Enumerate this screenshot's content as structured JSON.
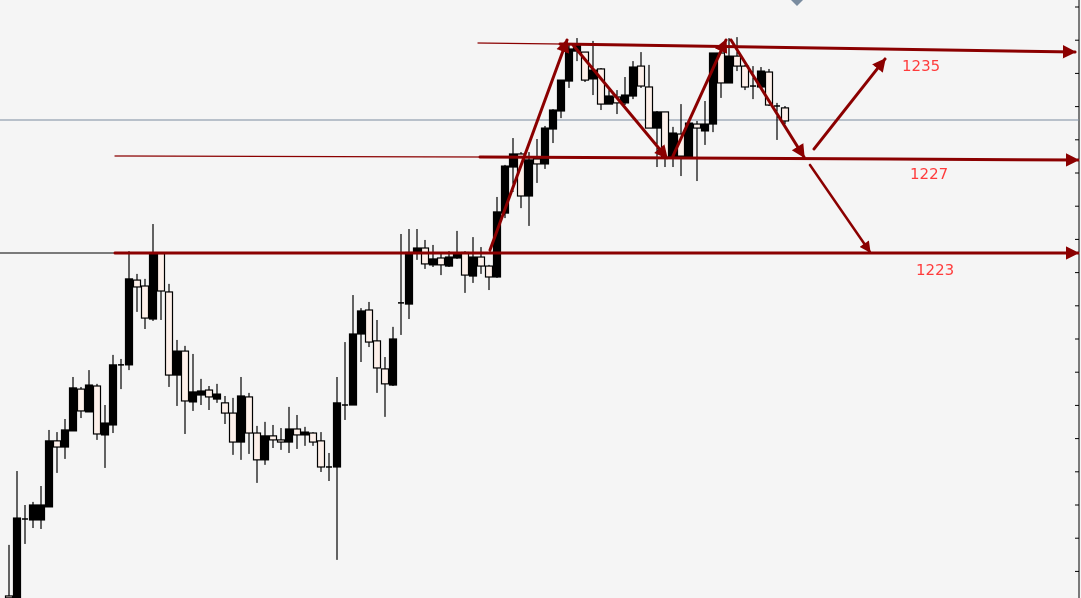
{
  "chart_data": {
    "type": "candlestick",
    "title": "",
    "xlabel": "",
    "ylabel": "",
    "grid": false,
    "colors": {
      "bull_body": "#000000",
      "bear_body": "#fdf0ea",
      "annotation": "#8b0000",
      "label": "#ff3b3b",
      "current_price_line": "#7a8ca0",
      "background": "#f5f5f5"
    },
    "current_price": 1228.6,
    "candles_ohlc": [
      [
        1208.56,
        1210.71,
        1208.48,
        1208.48
      ],
      [
        1208.48,
        1213.82,
        1208.48,
        1211.84
      ],
      [
        1211.8,
        1212.39,
        1210.75,
        1211.8
      ],
      [
        1211.76,
        1212.52,
        1211.42,
        1212.39
      ],
      [
        1211.76,
        1213.19,
        1211.38,
        1212.39
      ],
      [
        1212.31,
        1215.55,
        1212.31,
        1215.09
      ],
      [
        1215.09,
        1215.46,
        1213.74,
        1214.83
      ],
      [
        1214.83,
        1216.01,
        1214.33,
        1215.55
      ],
      [
        1215.51,
        1217.78,
        1215.51,
        1217.32
      ],
      [
        1217.27,
        1217.36,
        1216.05,
        1216.35
      ],
      [
        1216.31,
        1218.07,
        1216.31,
        1217.44
      ],
      [
        1217.4,
        1217.49,
        1215.13,
        1215.38
      ],
      [
        1215.34,
        1216.6,
        1213.95,
        1215.84
      ],
      [
        1215.76,
        1218.71,
        1215.42,
        1218.29
      ],
      [
        1218.29,
        1218.54,
        1217.27,
        1218.29
      ],
      [
        1218.29,
        1223.08,
        1218.07,
        1221.91
      ],
      [
        1221.86,
        1222.12,
        1220.52,
        1221.57
      ],
      [
        1221.61,
        1221.91,
        1219.8,
        1220.26
      ],
      [
        1220.22,
        1224.22,
        1220.14,
        1222.96
      ],
      [
        1222.96,
        1223.04,
        1220.18,
        1221.4
      ],
      [
        1221.36,
        1221.7,
        1217.36,
        1217.86
      ],
      [
        1217.86,
        1219.34,
        1216.56,
        1218.87
      ],
      [
        1218.87,
        1219.09,
        1215.38,
        1216.77
      ],
      [
        1216.73,
        1218.75,
        1216.35,
        1217.15
      ],
      [
        1217.02,
        1217.7,
        1216.6,
        1217.19
      ],
      [
        1217.23,
        1217.4,
        1216.39,
        1216.94
      ],
      [
        1216.85,
        1217.49,
        1216.69,
        1217.06
      ],
      [
        1216.69,
        1216.98,
        1215.8,
        1216.26
      ],
      [
        1216.26,
        1216.9,
        1214.5,
        1215.04
      ],
      [
        1215.04,
        1217.78,
        1214.29,
        1216.98
      ],
      [
        1216.94,
        1217.11,
        1214.54,
        1215.42
      ],
      [
        1215.42,
        1215.72,
        1213.32,
        1214.29
      ],
      [
        1214.29,
        1215.89,
        1214.08,
        1215.3
      ],
      [
        1215.3,
        1215.76,
        1214.79,
        1215.13
      ],
      [
        1215.13,
        1215.63,
        1214.71,
        1215.04
      ],
      [
        1215.04,
        1216.52,
        1214.58,
        1215.59
      ],
      [
        1215.59,
        1216.18,
        1214.75,
        1215.34
      ],
      [
        1215.34,
        1215.68,
        1214.88,
        1215.46
      ],
      [
        1215.42,
        1215.46,
        1214.88,
        1215.04
      ],
      [
        1215.09,
        1215.46,
        1213.78,
        1213.99
      ],
      [
        1213.99,
        1214.58,
        1213.4,
        1213.99
      ],
      [
        1213.99,
        1217.78,
        1210.08,
        1216.69
      ],
      [
        1216.6,
        1219.25,
        1215.97,
        1216.6
      ],
      [
        1216.6,
        1221.23,
        1216.6,
        1219.59
      ],
      [
        1219.59,
        1220.68,
        1218.41,
        1220.56
      ],
      [
        1220.6,
        1220.94,
        1219.04,
        1219.25
      ],
      [
        1219.3,
        1220.18,
        1217.11,
        1218.16
      ],
      [
        1218.12,
        1218.62,
        1216.1,
        1217.49
      ],
      [
        1217.44,
        1219.89,
        1217.4,
        1219.38
      ],
      [
        1220.9,
        1223.8,
        1219.55,
        1220.9
      ],
      [
        1220.85,
        1224.01,
        1220.22,
        1223.04
      ],
      [
        1223.0,
        1224.01,
        1222.71,
        1223.21
      ],
      [
        1223.21,
        1223.55,
        1222.33,
        1222.54
      ],
      [
        1222.5,
        1223.34,
        1222.41,
        1222.75
      ],
      [
        1222.79,
        1223.04,
        1222.07,
        1222.5
      ],
      [
        1222.45,
        1223.08,
        1222.41,
        1222.83
      ],
      [
        1222.79,
        1223.93,
        1222.75,
        1222.92
      ],
      [
        1223.04,
        1223.08,
        1221.32,
        1222.07
      ],
      [
        1222.03,
        1223.67,
        1221.74,
        1222.83
      ],
      [
        1222.83,
        1223.25,
        1222.12,
        1222.45
      ],
      [
        1222.45,
        1222.5,
        1221.44,
        1221.99
      ],
      [
        1221.99,
        1225.36,
        1221.95,
        1224.73
      ],
      [
        1224.68,
        1226.71,
        1224.47,
        1226.66
      ],
      [
        1226.62,
        1227.84,
        1225.57,
        1227.17
      ],
      [
        1227.17,
        1227.25,
        1224.89,
        1225.4
      ],
      [
        1225.4,
        1227.25,
        1224.14,
        1226.92
      ],
      [
        1226.96,
        1227.8,
        1225.95,
        1226.75
      ],
      [
        1226.75,
        1228.35,
        1226.54,
        1228.26
      ],
      [
        1228.22,
        1229.06,
        1227.63,
        1229.02
      ],
      [
        1228.98,
        1230.28,
        1228.68,
        1230.28
      ],
      [
        1230.24,
        1231.84,
        1229.95,
        1231.59
      ],
      [
        1231.5,
        1232.05,
        1231.08,
        1231.8
      ],
      [
        1231.46,
        1231.46,
        1230.2,
        1230.28
      ],
      [
        1230.33,
        1231.93,
        1229.65,
        1230.7
      ],
      [
        1230.75,
        1230.79,
        1229.02,
        1229.27
      ],
      [
        1229.27,
        1229.95,
        1229.27,
        1229.61
      ],
      [
        1229.57,
        1229.86,
        1228.85,
        1229.32
      ],
      [
        1229.32,
        1230.41,
        1229.23,
        1229.65
      ],
      [
        1229.61,
        1231.08,
        1229.48,
        1230.83
      ],
      [
        1230.87,
        1231.46,
        1229.95,
        1230.03
      ],
      [
        1229.99,
        1230.92,
        1228.26,
        1228.26
      ],
      [
        1228.26,
        1228.98,
        1226.62,
        1228.94
      ],
      [
        1228.94,
        1228.94,
        1226.62,
        1227.0
      ],
      [
        1227.0,
        1228.31,
        1226.62,
        1228.05
      ],
      [
        1228.01,
        1229.27,
        1226.24,
        1227.08
      ],
      [
        1227.04,
        1228.47,
        1227.04,
        1228.47
      ],
      [
        1228.43,
        1228.56,
        1226.03,
        1228.26
      ],
      [
        1228.14,
        1229.4,
        1227.55,
        1228.43
      ],
      [
        1228.43,
        1231.42,
        1228.09,
        1231.42
      ],
      [
        1231.42,
        1231.8,
        1229.53,
        1230.16
      ],
      [
        1230.16,
        1232.05,
        1230.16,
        1231.29
      ],
      [
        1231.29,
        1232.09,
        1230.66,
        1230.87
      ],
      [
        1230.87,
        1230.92,
        1229.86,
        1229.99
      ],
      [
        1229.99,
        1230.87,
        1229.48,
        1230.03
      ],
      [
        1229.99,
        1230.83,
        1229.95,
        1230.66
      ],
      [
        1230.62,
        1230.75,
        1229.19,
        1229.23
      ],
      [
        1229.19,
        1229.32,
        1227.76,
        1229.19
      ],
      [
        1229.11,
        1229.19,
        1228.43,
        1228.56
      ]
    ],
    "annotations": {
      "levels": [
        {
          "label": "1235",
          "price": 1235
        },
        {
          "label": "1227",
          "price": 1227
        },
        {
          "label": "1223",
          "price": 1223
        }
      ]
    }
  }
}
